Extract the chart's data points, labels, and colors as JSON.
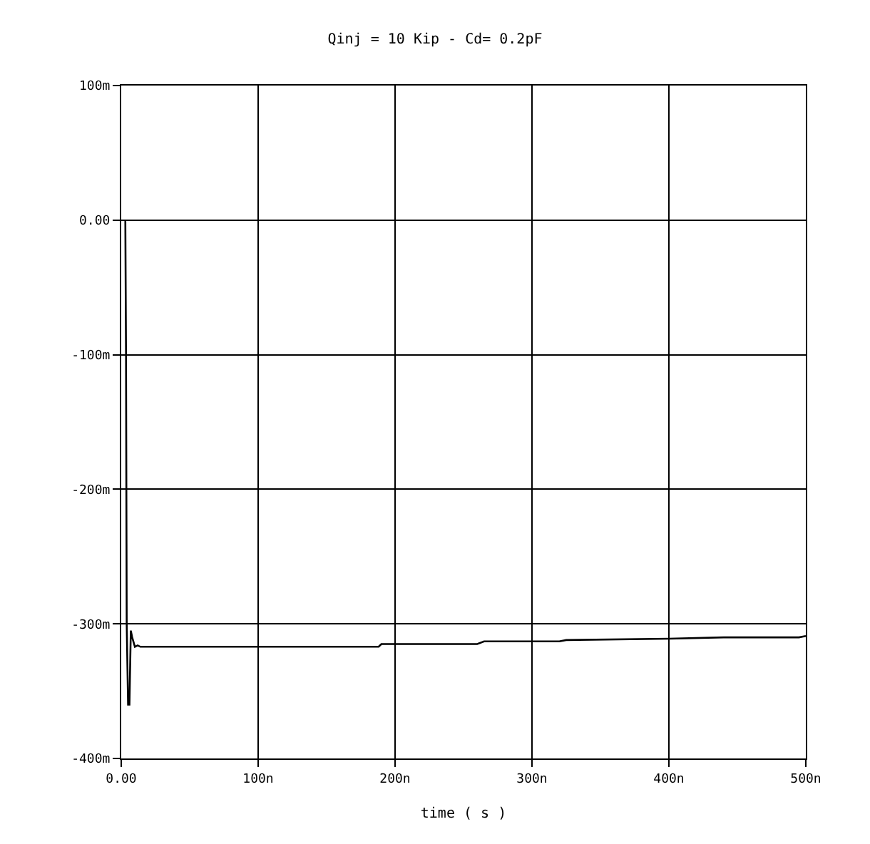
{
  "chart_data": {
    "type": "line",
    "title": "Qinj = 10 Kip - Cd= 0.2pF",
    "xlabel": "time ( s )",
    "x": [
      3,
      3.5,
      4,
      5,
      6,
      7,
      8,
      10,
      12,
      14,
      60,
      150,
      188,
      190,
      260,
      265,
      320,
      325,
      400,
      440,
      495,
      500
    ],
    "series": [
      {
        "color": "#000000",
        "values": [
          0,
          -100,
          -300,
          -360,
          -360,
          -305,
          -310,
          -317,
          -316,
          -317,
          -317,
          -317,
          -317,
          -315,
          -315,
          -313,
          -313,
          -312,
          -311,
          -310,
          -310,
          -309
        ]
      }
    ],
    "xlim": [
      0,
      500
    ],
    "ylim": [
      -400,
      100
    ],
    "xticks": [
      {
        "value": 0,
        "label": "0.00"
      },
      {
        "value": 100,
        "label": "100n"
      },
      {
        "value": 200,
        "label": "200n"
      },
      {
        "value": 300,
        "label": "300n"
      },
      {
        "value": 400,
        "label": "400n"
      },
      {
        "value": 500,
        "label": "500n"
      }
    ],
    "yticks": [
      {
        "value": 100,
        "label": "100m"
      },
      {
        "value": 0,
        "label": "0.00"
      },
      {
        "value": -100,
        "label": "-100m"
      },
      {
        "value": -200,
        "label": "-200m"
      },
      {
        "value": -300,
        "label": "-300m"
      },
      {
        "value": -400,
        "label": "-400m"
      }
    ],
    "grid": true,
    "legend": false,
    "line_style": "solid",
    "marker": "none"
  }
}
